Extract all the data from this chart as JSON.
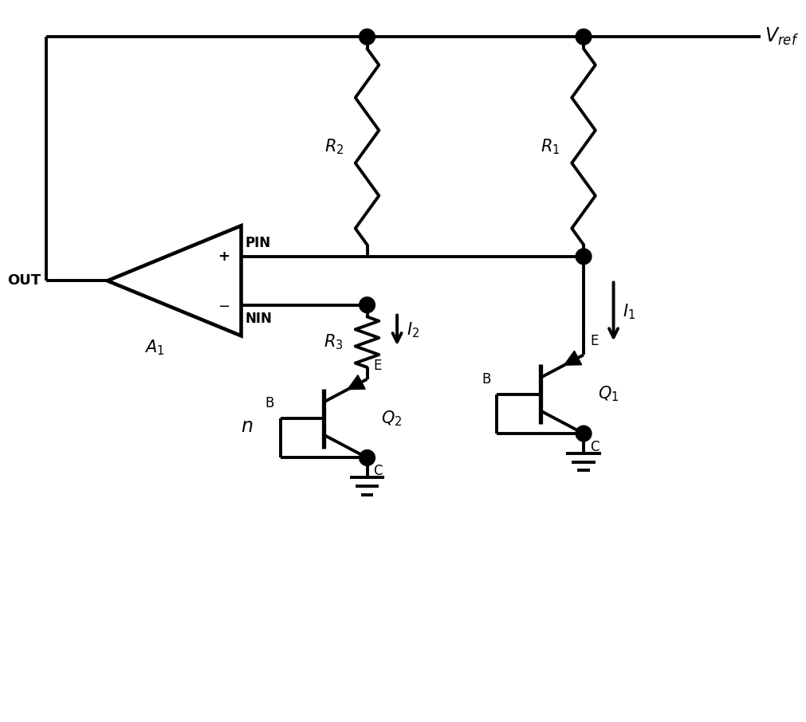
{
  "bg_color": "#ffffff",
  "line_color": "#000000",
  "line_width": 2.8,
  "figsize": [
    10.11,
    9.06
  ],
  "dpi": 100,
  "labels": {
    "Vref": "$V_{ref}$",
    "R1": "$R_1$",
    "R2": "$R_2$",
    "R3": "$R_3$",
    "Q1": "$Q_1$",
    "Q2": "$Q_2$",
    "I1": "$I_1$",
    "I2": "$I_2$",
    "n": "$n$",
    "A1": "$A_1$",
    "PIN": "PIN",
    "NIN": "NIN",
    "OUT": "OUT",
    "E": "E",
    "B": "B",
    "C": "C"
  }
}
